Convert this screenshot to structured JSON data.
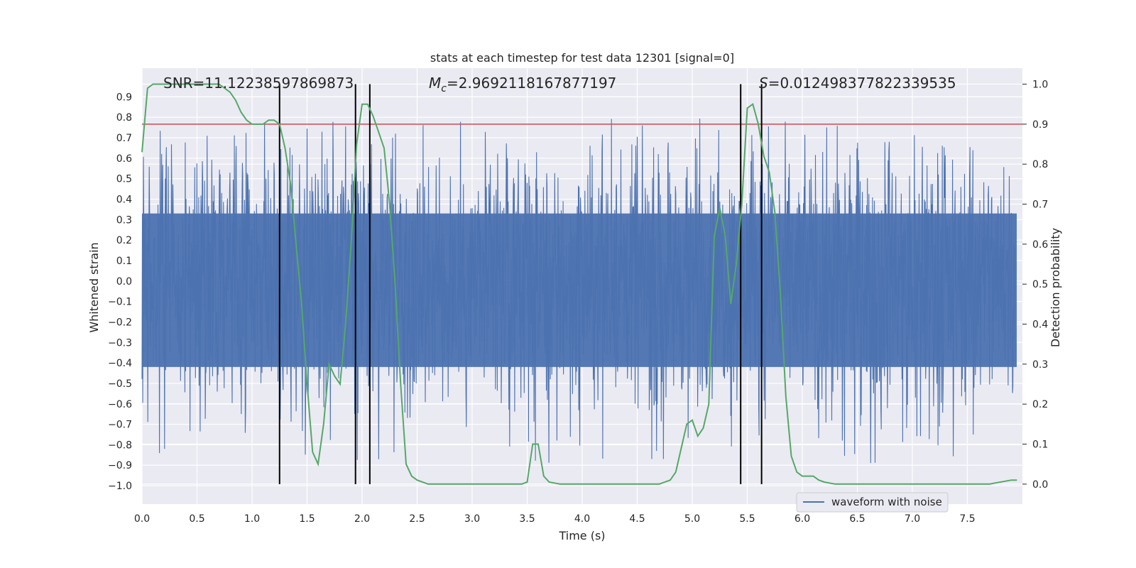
{
  "chart_data": {
    "type": "line",
    "title": "stats at each timestep for test data 12301 [signal=0]",
    "xlabel": "Time (s)",
    "ylabel": "Whitened strain",
    "ylabel_right": "Detection probability",
    "xlim": [
      0.0,
      8.0
    ],
    "ylim": [
      -1.09,
      1.04
    ],
    "ylim_right": [
      -0.05,
      1.04
    ],
    "grid": true,
    "x_ticks": [
      "0.0",
      "0.5",
      "1.0",
      "1.5",
      "2.0",
      "2.5",
      "3.0",
      "3.5",
      "4.0",
      "4.5",
      "5.0",
      "5.5",
      "6.0",
      "6.5",
      "7.0",
      "7.5"
    ],
    "y_ticks": [
      "0.9",
      "0.8",
      "0.7",
      "0.6",
      "0.5",
      "0.4",
      "0.3",
      "0.2",
      "0.1",
      "0.0",
      "−0.1",
      "−0.2",
      "−0.3",
      "−0.4",
      "−0.5",
      "−0.6",
      "−0.7",
      "−0.8",
      "−0.9",
      "−1.0"
    ],
    "y_ticks_right": [
      "1.0",
      "0.9",
      "0.8",
      "0.7",
      "0.6",
      "0.5",
      "0.4",
      "0.3",
      "0.2",
      "0.1",
      "0.0"
    ],
    "annotations": {
      "snr": "SNR=11.12238597869873",
      "mc_symbol": "M",
      "mc_sub": "c",
      "mc_value": "=2.9692118167877197",
      "s_symbol": "S",
      "s_value": "=0.012498377822339535"
    },
    "legend": {
      "label": "waveform with noise",
      "placement": "lower-right"
    },
    "series": [
      {
        "name": "waveform with noise",
        "color": "#4c72b0",
        "axis": "left",
        "description_values": {
          "typical_envelope": [
            -0.45,
            0.45
          ],
          "max": 0.9,
          "min": -1.0
        }
      },
      {
        "color": "#55a868",
        "axis": "right",
        "x": [
          0.0,
          0.05,
          0.1,
          0.2,
          0.3,
          0.4,
          0.5,
          0.6,
          0.7,
          0.75,
          0.8,
          0.85,
          0.9,
          0.95,
          1.0,
          1.05,
          1.1,
          1.15,
          1.2,
          1.25,
          1.3,
          1.35,
          1.4,
          1.45,
          1.5,
          1.55,
          1.6,
          1.65,
          1.7,
          1.75,
          1.8,
          1.85,
          1.9,
          1.95,
          2.0,
          2.05,
          2.1,
          2.15,
          2.2,
          2.25,
          2.3,
          2.35,
          2.4,
          2.45,
          2.5,
          2.6,
          2.7,
          2.8,
          2.9,
          3.0,
          3.2,
          3.4,
          3.45,
          3.5,
          3.55,
          3.6,
          3.65,
          3.7,
          3.8,
          4.0,
          4.2,
          4.4,
          4.5,
          4.6,
          4.7,
          4.8,
          4.85,
          4.9,
          4.95,
          5.0,
          5.05,
          5.1,
          5.15,
          5.2,
          5.25,
          5.3,
          5.35,
          5.4,
          5.45,
          5.5,
          5.55,
          5.6,
          5.65,
          5.7,
          5.75,
          5.8,
          5.85,
          5.9,
          5.95,
          6.0,
          6.05,
          6.1,
          6.15,
          6.2,
          6.3,
          6.5,
          6.7,
          7.0,
          7.3,
          7.5,
          7.7,
          7.9,
          7.95
        ],
        "y": [
          0.83,
          0.99,
          1.0,
          1.0,
          1.0,
          1.0,
          1.0,
          1.0,
          1.0,
          0.99,
          0.98,
          0.96,
          0.93,
          0.91,
          0.9,
          0.9,
          0.9,
          0.91,
          0.91,
          0.9,
          0.84,
          0.75,
          0.6,
          0.45,
          0.25,
          0.08,
          0.05,
          0.15,
          0.3,
          0.27,
          0.25,
          0.4,
          0.6,
          0.85,
          0.95,
          0.95,
          0.92,
          0.88,
          0.84,
          0.7,
          0.5,
          0.25,
          0.05,
          0.02,
          0.01,
          0.0,
          0.0,
          0.0,
          0.0,
          0.0,
          0.0,
          0.0,
          0.0,
          0.005,
          0.1,
          0.1,
          0.02,
          0.005,
          0.0,
          0.0,
          0.0,
          0.0,
          0.0,
          0.0,
          0.0,
          0.01,
          0.03,
          0.09,
          0.15,
          0.16,
          0.12,
          0.14,
          0.2,
          0.62,
          0.69,
          0.62,
          0.45,
          0.55,
          0.7,
          0.94,
          0.95,
          0.9,
          0.82,
          0.78,
          0.68,
          0.48,
          0.22,
          0.07,
          0.03,
          0.02,
          0.02,
          0.02,
          0.01,
          0.005,
          0.0,
          0.0,
          0.0,
          0.0,
          0.0,
          0.0,
          0.0,
          0.01,
          0.01
        ]
      }
    ],
    "threshold": {
      "color": "#c44e52",
      "value_right": 0.9
    },
    "vertical_lines": [
      1.25,
      1.94,
      2.07,
      5.44,
      5.63
    ]
  }
}
